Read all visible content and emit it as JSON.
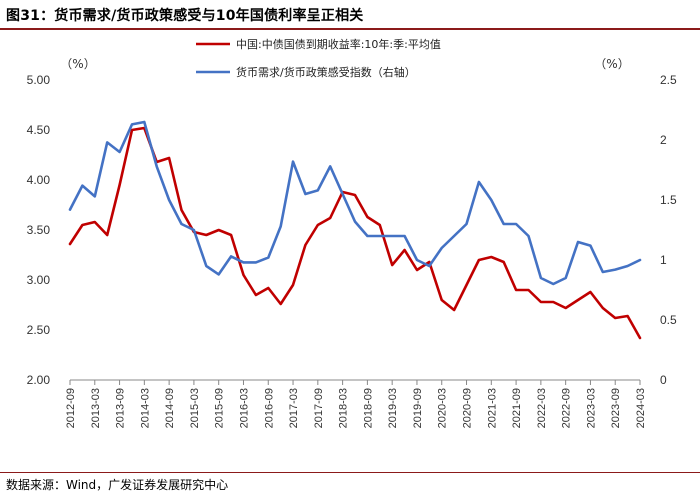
{
  "figure": {
    "title": "图31：货币需求/货币政策感受与10年国债利率呈正相关",
    "source": "数据来源：Wind，广发证券发展研究中心"
  },
  "chart_data": {
    "type": "line",
    "left_axis": {
      "unit": "（%）",
      "ylim": [
        2.0,
        5.0
      ],
      "ticks": [
        "2.00",
        "2.50",
        "3.00",
        "3.50",
        "4.00",
        "4.50",
        "5.00"
      ]
    },
    "right_axis": {
      "unit": "（%）",
      "ylim": [
        0,
        2.5
      ],
      "ticks": [
        "0",
        "0.5",
        "1",
        "1.5",
        "2",
        "2.5"
      ]
    },
    "x_ticks": [
      "2012-09",
      "2013-03",
      "2013-09",
      "2014-03",
      "2014-09",
      "2015-03",
      "2015-09",
      "2016-03",
      "2016-09",
      "2017-03",
      "2017-09",
      "2018-03",
      "2018-09",
      "2019-03",
      "2019-09",
      "2020-03",
      "2020-09",
      "2021-03",
      "2021-09",
      "2022-03",
      "2022-09",
      "2023-03",
      "2023-09",
      "2024-03"
    ],
    "grid": false,
    "legend_position": "top-center",
    "series": [
      {
        "name": "中国:中债国债到期收益率:10年:季:平均值",
        "axis": "left",
        "color": "#c00000",
        "x": [
          "2012-09",
          "2012-12",
          "2013-03",
          "2013-06",
          "2013-09",
          "2013-12",
          "2014-03",
          "2014-06",
          "2014-09",
          "2014-12",
          "2015-03",
          "2015-06",
          "2015-09",
          "2015-12",
          "2016-03",
          "2016-06",
          "2016-09",
          "2016-12",
          "2017-03",
          "2017-06",
          "2017-09",
          "2017-12",
          "2018-03",
          "2018-06",
          "2018-09",
          "2018-12",
          "2019-03",
          "2019-06",
          "2019-09",
          "2019-12",
          "2020-03",
          "2020-06",
          "2020-09",
          "2020-12",
          "2021-03",
          "2021-06",
          "2021-09",
          "2021-12",
          "2022-03",
          "2022-06",
          "2022-09",
          "2022-12",
          "2023-03",
          "2023-06",
          "2023-09",
          "2023-12",
          "2024-03"
        ],
        "values": [
          3.36,
          3.55,
          3.58,
          3.45,
          3.95,
          4.5,
          4.52,
          4.18,
          4.22,
          3.7,
          3.48,
          3.45,
          3.5,
          3.45,
          3.05,
          2.85,
          2.92,
          2.76,
          2.95,
          3.35,
          3.55,
          3.62,
          3.88,
          3.85,
          3.63,
          3.55,
          3.15,
          3.3,
          3.1,
          3.18,
          2.8,
          2.7,
          2.95,
          3.2,
          3.23,
          3.18,
          2.9,
          2.9,
          2.78,
          2.78,
          2.72,
          2.8,
          2.88,
          2.72,
          2.62,
          2.64,
          2.42
        ]
      },
      {
        "name": "货币需求/货币政策感受指数（右轴）",
        "axis": "right",
        "color": "#4472c4",
        "x": [
          "2012-09",
          "2012-12",
          "2013-03",
          "2013-06",
          "2013-09",
          "2013-12",
          "2014-03",
          "2014-06",
          "2014-09",
          "2014-12",
          "2015-03",
          "2015-06",
          "2015-09",
          "2015-12",
          "2016-03",
          "2016-06",
          "2016-09",
          "2016-12",
          "2017-03",
          "2017-06",
          "2017-09",
          "2017-12",
          "2018-03",
          "2018-06",
          "2018-09",
          "2018-12",
          "2019-03",
          "2019-06",
          "2019-09",
          "2019-12",
          "2020-03",
          "2020-06",
          "2020-09",
          "2020-12",
          "2021-03",
          "2021-06",
          "2021-09",
          "2021-12",
          "2022-03",
          "2022-06",
          "2022-09",
          "2022-12",
          "2023-03",
          "2023-06",
          "2023-09",
          "2023-12",
          "2024-03"
        ],
        "values": [
          1.42,
          1.62,
          1.53,
          1.98,
          1.9,
          2.13,
          2.15,
          1.78,
          1.5,
          1.3,
          1.25,
          0.95,
          0.88,
          1.03,
          0.98,
          0.98,
          1.02,
          1.28,
          1.82,
          1.55,
          1.58,
          1.78,
          1.55,
          1.32,
          1.2,
          1.2,
          1.2,
          1.2,
          1.0,
          0.95,
          1.1,
          1.2,
          1.3,
          1.65,
          1.5,
          1.3,
          1.3,
          1.2,
          0.85,
          0.8,
          0.85,
          1.15,
          1.12,
          0.9,
          0.92,
          0.95,
          1.0
        ]
      }
    ]
  }
}
